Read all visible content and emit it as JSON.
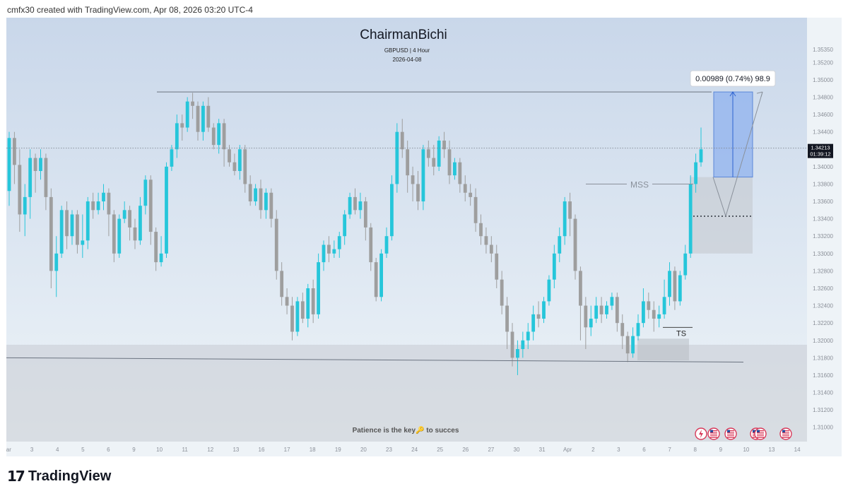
{
  "header": {
    "credit": "cmfx30 created with TradingView.com, Apr 08, 2026 03:20 UTC-4"
  },
  "chart_title": {
    "title": "ChairmanBichi",
    "symbol": "GBPUSD | 4 Hour",
    "date": "2026-04-08"
  },
  "footer_note": "Patience is the key🔑 to succes",
  "brand": {
    "name": "TradingView",
    "mark": "17"
  },
  "colors": {
    "up": "#26c6da",
    "down": "#9e9e9e",
    "bg_top": "#c9d7ea",
    "bg_bottom": "#eef4f8",
    "target_zone": "#8fb1ee",
    "grey_zone": "#c6cbd1"
  },
  "chart_data": {
    "type": "candlestick",
    "symbol": "GBPUSD",
    "timeframe": "4 Hour",
    "ylim": [
      1.309,
      1.3565
    ],
    "y_ticks": [
      "1.35350",
      "1.35200",
      "1.35000",
      "1.34800",
      "1.34600",
      "1.34400",
      "1.34200",
      "1.34000",
      "1.33800",
      "1.33600",
      "1.33400",
      "1.33200",
      "1.33000",
      "1.32800",
      "1.32600",
      "1.32400",
      "1.32200",
      "1.32000",
      "1.31800",
      "1.31600",
      "1.31400",
      "1.31200",
      "1.31000"
    ],
    "x_ticks": [
      "Mar",
      "3",
      "4",
      "5",
      "6",
      "9",
      "10",
      "11",
      "12",
      "13",
      "16",
      "17",
      "18",
      "19",
      "20",
      "23",
      "24",
      "25",
      "26",
      "27",
      "30",
      "31",
      "Apr",
      "2",
      "3",
      "6",
      "7",
      "8",
      "9",
      "10",
      "13",
      "14"
    ],
    "current_price": {
      "price": "1.34213",
      "countdown": "01:39:12",
      "value": 1.34213
    },
    "annotations": {
      "measure_label": "0.00989 (0.74%) 98.9",
      "mss": "MSS",
      "ts": "TS",
      "resistance_level": 1.3486,
      "support_level": 1.3175,
      "demand_zone": [
        1.3125,
        1.3195
      ],
      "target_range": [
        1.3388,
        1.3486
      ],
      "mss_level": 1.3343,
      "breakout_box": [
        1.33,
        1.3388
      ]
    },
    "candles": [
      [
        1.3372,
        1.3433,
        1.344,
        1.3355
      ],
      [
        1.3433,
        1.3402,
        1.344,
        1.338
      ],
      [
        1.3402,
        1.3345,
        1.342,
        1.3325
      ],
      [
        1.3345,
        1.3365,
        1.338,
        1.332
      ],
      [
        1.3365,
        1.341,
        1.342,
        1.334
      ],
      [
        1.341,
        1.3395,
        1.3415,
        1.337
      ],
      [
        1.3395,
        1.341,
        1.342,
        1.3385
      ],
      [
        1.341,
        1.3365,
        1.3415,
        1.335
      ],
      [
        1.3365,
        1.328,
        1.3375,
        1.326
      ],
      [
        1.328,
        1.33,
        1.332,
        1.325
      ],
      [
        1.33,
        1.335,
        1.3355,
        1.3295
      ],
      [
        1.335,
        1.332,
        1.336,
        1.3305
      ],
      [
        1.332,
        1.3345,
        1.335,
        1.331
      ],
      [
        1.3345,
        1.331,
        1.335,
        1.33
      ],
      [
        1.331,
        1.3315,
        1.3345,
        1.3295
      ],
      [
        1.3315,
        1.336,
        1.3365,
        1.3305
      ],
      [
        1.336,
        1.335,
        1.337,
        1.334
      ],
      [
        1.335,
        1.336,
        1.337,
        1.3345
      ],
      [
        1.336,
        1.337,
        1.338,
        1.335
      ],
      [
        1.337,
        1.3345,
        1.3375,
        1.332
      ],
      [
        1.3345,
        1.33,
        1.335,
        1.329
      ],
      [
        1.33,
        1.334,
        1.3345,
        1.3295
      ],
      [
        1.334,
        1.335,
        1.336,
        1.3335
      ],
      [
        1.335,
        1.333,
        1.3355,
        1.3315
      ],
      [
        1.333,
        1.3315,
        1.334,
        1.3305
      ],
      [
        1.3315,
        1.3355,
        1.3365,
        1.331
      ],
      [
        1.3355,
        1.3385,
        1.339,
        1.3345
      ],
      [
        1.3385,
        1.3325,
        1.339,
        1.331
      ],
      [
        1.3325,
        1.329,
        1.333,
        1.328
      ],
      [
        1.329,
        1.33,
        1.332,
        1.3285
      ],
      [
        1.33,
        1.34,
        1.3405,
        1.3295
      ],
      [
        1.34,
        1.342,
        1.3425,
        1.3395
      ],
      [
        1.342,
        1.345,
        1.346,
        1.341
      ],
      [
        1.345,
        1.3445,
        1.346,
        1.343
      ],
      [
        1.3445,
        1.3475,
        1.348,
        1.344
      ],
      [
        1.3475,
        1.347,
        1.3485,
        1.3455
      ],
      [
        1.347,
        1.344,
        1.3475,
        1.343
      ],
      [
        1.344,
        1.347,
        1.3475,
        1.343
      ],
      [
        1.347,
        1.3445,
        1.348,
        1.344
      ],
      [
        1.3445,
        1.3425,
        1.345,
        1.342
      ],
      [
        1.3425,
        1.345,
        1.3455,
        1.3415
      ],
      [
        1.345,
        1.342,
        1.3455,
        1.34
      ],
      [
        1.342,
        1.3405,
        1.3425,
        1.34
      ],
      [
        1.3405,
        1.3395,
        1.3415,
        1.339
      ],
      [
        1.3395,
        1.342,
        1.3425,
        1.3385
      ],
      [
        1.342,
        1.338,
        1.3425,
        1.337
      ],
      [
        1.338,
        1.336,
        1.339,
        1.3355
      ],
      [
        1.336,
        1.3375,
        1.338,
        1.3355
      ],
      [
        1.3375,
        1.335,
        1.3385,
        1.334
      ],
      [
        1.335,
        1.337,
        1.3375,
        1.334
      ],
      [
        1.337,
        1.334,
        1.3375,
        1.333
      ],
      [
        1.334,
        1.328,
        1.335,
        1.327
      ],
      [
        1.328,
        1.325,
        1.329,
        1.324
      ],
      [
        1.325,
        1.324,
        1.326,
        1.323
      ],
      [
        1.324,
        1.321,
        1.325,
        1.32
      ],
      [
        1.321,
        1.3245,
        1.325,
        1.3205
      ],
      [
        1.3245,
        1.3225,
        1.3255,
        1.322
      ],
      [
        1.3225,
        1.326,
        1.3265,
        1.3215
      ],
      [
        1.326,
        1.323,
        1.327,
        1.322
      ],
      [
        1.323,
        1.329,
        1.33,
        1.3225
      ],
      [
        1.329,
        1.331,
        1.3315,
        1.328
      ],
      [
        1.331,
        1.33,
        1.332,
        1.329
      ],
      [
        1.33,
        1.3305,
        1.3315,
        1.3295
      ],
      [
        1.3305,
        1.332,
        1.3325,
        1.3295
      ],
      [
        1.332,
        1.3345,
        1.335,
        1.331
      ],
      [
        1.3345,
        1.3365,
        1.337,
        1.334
      ],
      [
        1.3365,
        1.335,
        1.3375,
        1.3345
      ],
      [
        1.335,
        1.336,
        1.337,
        1.334
      ],
      [
        1.336,
        1.333,
        1.3365,
        1.3315
      ],
      [
        1.333,
        1.329,
        1.3335,
        1.328
      ],
      [
        1.329,
        1.325,
        1.3295,
        1.3245
      ],
      [
        1.325,
        1.33,
        1.3305,
        1.3245
      ],
      [
        1.33,
        1.332,
        1.333,
        1.3295
      ],
      [
        1.332,
        1.338,
        1.339,
        1.3315
      ],
      [
        1.338,
        1.344,
        1.345,
        1.337
      ],
      [
        1.344,
        1.342,
        1.3455,
        1.341
      ],
      [
        1.342,
        1.339,
        1.343,
        1.337
      ],
      [
        1.339,
        1.338,
        1.34,
        1.336
      ],
      [
        1.338,
        1.336,
        1.3395,
        1.335
      ],
      [
        1.336,
        1.342,
        1.3425,
        1.335
      ],
      [
        1.342,
        1.341,
        1.343,
        1.34
      ],
      [
        1.341,
        1.34,
        1.3425,
        1.339
      ],
      [
        1.34,
        1.343,
        1.3435,
        1.3395
      ],
      [
        1.343,
        1.342,
        1.344,
        1.341
      ],
      [
        1.342,
        1.339,
        1.343,
        1.338
      ],
      [
        1.339,
        1.3405,
        1.341,
        1.3385
      ],
      [
        1.3405,
        1.338,
        1.341,
        1.337
      ],
      [
        1.338,
        1.337,
        1.339,
        1.336
      ],
      [
        1.337,
        1.3365,
        1.338,
        1.3355
      ],
      [
        1.3365,
        1.3335,
        1.3375,
        1.3325
      ],
      [
        1.3335,
        1.332,
        1.3345,
        1.331
      ],
      [
        1.332,
        1.331,
        1.333,
        1.33
      ],
      [
        1.331,
        1.33,
        1.332,
        1.329
      ],
      [
        1.33,
        1.327,
        1.331,
        1.326
      ],
      [
        1.327,
        1.324,
        1.328,
        1.323
      ],
      [
        1.324,
        1.321,
        1.325,
        1.319
      ],
      [
        1.321,
        1.318,
        1.322,
        1.317
      ],
      [
        1.318,
        1.319,
        1.32,
        1.316
      ],
      [
        1.319,
        1.32,
        1.321,
        1.318
      ],
      [
        1.32,
        1.321,
        1.322,
        1.319
      ],
      [
        1.321,
        1.323,
        1.324,
        1.32
      ],
      [
        1.323,
        1.3225,
        1.3245,
        1.3215
      ],
      [
        1.3225,
        1.3245,
        1.325,
        1.322
      ],
      [
        1.3245,
        1.327,
        1.3275,
        1.324
      ],
      [
        1.327,
        1.33,
        1.331,
        1.326
      ],
      [
        1.33,
        1.332,
        1.333,
        1.329
      ],
      [
        1.332,
        1.336,
        1.3365,
        1.331
      ],
      [
        1.336,
        1.334,
        1.337,
        1.332
      ],
      [
        1.334,
        1.328,
        1.3345,
        1.327
      ],
      [
        1.328,
        1.324,
        1.3285,
        1.32
      ],
      [
        1.324,
        1.3215,
        1.325,
        1.319
      ],
      [
        1.3215,
        1.3225,
        1.324,
        1.3205
      ],
      [
        1.3225,
        1.324,
        1.325,
        1.322
      ],
      [
        1.324,
        1.323,
        1.325,
        1.322
      ],
      [
        1.323,
        1.324,
        1.3245,
        1.3225
      ],
      [
        1.324,
        1.325,
        1.3255,
        1.3235
      ],
      [
        1.325,
        1.322,
        1.3255,
        1.321
      ],
      [
        1.322,
        1.3205,
        1.323,
        1.319
      ],
      [
        1.3205,
        1.3185,
        1.321,
        1.3175
      ],
      [
        1.3185,
        1.3205,
        1.3215,
        1.318
      ],
      [
        1.3205,
        1.322,
        1.323,
        1.32
      ],
      [
        1.322,
        1.3245,
        1.326,
        1.3215
      ],
      [
        1.3245,
        1.3235,
        1.3255,
        1.3225
      ],
      [
        1.3235,
        1.3225,
        1.3245,
        1.321
      ],
      [
        1.3225,
        1.323,
        1.324,
        1.3215
      ],
      [
        1.323,
        1.325,
        1.327,
        1.3225
      ],
      [
        1.325,
        1.328,
        1.329,
        1.324
      ],
      [
        1.328,
        1.3245,
        1.3285,
        1.3235
      ],
      [
        1.3245,
        1.3275,
        1.328,
        1.324
      ],
      [
        1.3275,
        1.33,
        1.331,
        1.327
      ],
      [
        1.33,
        1.338,
        1.339,
        1.3295
      ],
      [
        1.338,
        1.3405,
        1.3415,
        1.337
      ],
      [
        1.3405,
        1.342,
        1.3445,
        1.34
      ]
    ]
  }
}
